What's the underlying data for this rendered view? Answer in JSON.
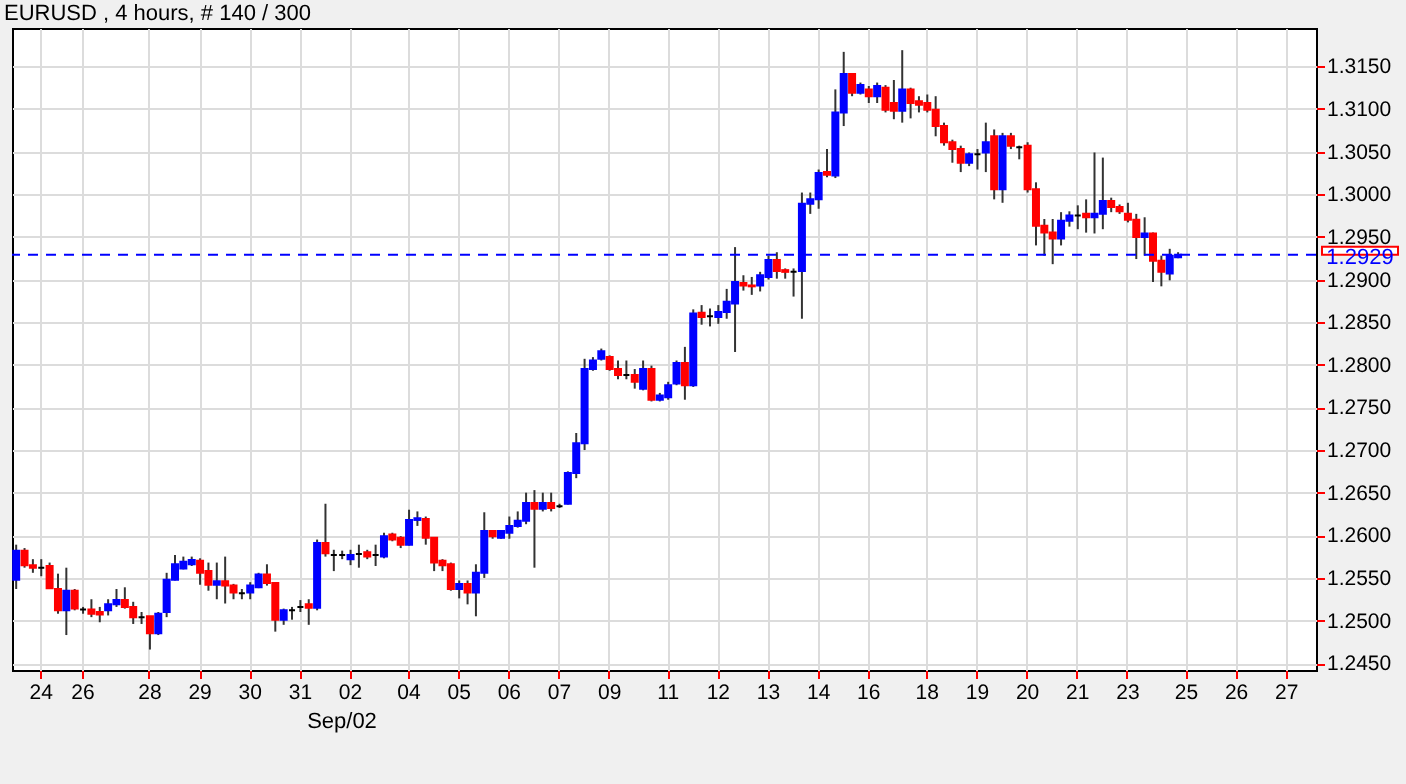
{
  "chart_data": {
    "type": "candlestick",
    "title": "EURUSD , 4 hours, # 140 / 300",
    "annotations": [
      "Sep/02"
    ],
    "categories": [
      null,
      null,
      null,
      "24",
      null,
      null,
      null,
      null,
      "26",
      null,
      null,
      null,
      null,
      null,
      null,
      null,
      "28",
      null,
      null,
      null,
      null,
      null,
      "29",
      null,
      null,
      null,
      null,
      null,
      "30",
      null,
      null,
      null,
      null,
      null,
      "31",
      null,
      null,
      null,
      null,
      null,
      "02",
      null,
      null,
      null,
      null,
      null,
      null,
      "04",
      null,
      null,
      null,
      null,
      null,
      "05",
      null,
      null,
      null,
      null,
      null,
      "06",
      null,
      null,
      null,
      null,
      null,
      "07",
      null,
      null,
      null,
      null,
      null,
      "09",
      null,
      null,
      null,
      null,
      null,
      null,
      "11",
      null,
      null,
      null,
      null,
      null,
      "12",
      null,
      null,
      null,
      null,
      null,
      "13",
      null,
      null,
      null,
      null,
      null,
      "14",
      null,
      null,
      null,
      null,
      null,
      "16",
      null,
      null,
      null,
      null,
      null,
      null,
      "18",
      null,
      null,
      null,
      null,
      null,
      "19",
      null,
      null,
      null,
      null,
      null,
      "20",
      null,
      null,
      null,
      null,
      null,
      "21",
      null,
      null,
      null,
      null,
      null,
      "23",
      null,
      null,
      null,
      null,
      null,
      null,
      "25",
      null,
      null,
      null,
      null,
      null,
      "26",
      null,
      null,
      null,
      null,
      null,
      "27",
      null,
      null,
      null
    ],
    "ohlc": [
      [
        1.2548,
        1.2589,
        1.2537,
        1.2582
      ],
      [
        1.2582,
        1.2585,
        1.2562,
        1.2565
      ],
      [
        1.2565,
        1.2572,
        1.2556,
        1.2562
      ],
      [
        1.2562,
        1.2572,
        1.2552,
        1.2562
      ],
      [
        1.2564,
        1.2568,
        1.2537,
        1.2538
      ],
      [
        1.2537,
        1.2555,
        1.2508,
        1.2512
      ],
      [
        1.2512,
        1.2562,
        1.2483,
        1.2535
      ],
      [
        1.2535,
        1.2537,
        1.2512,
        1.2514
      ],
      [
        1.2513,
        1.2516,
        1.2508,
        1.2513
      ],
      [
        1.2513,
        1.2525,
        1.2504,
        1.2508
      ],
      [
        1.251,
        1.2516,
        1.2498,
        1.2507
      ],
      [
        1.2512,
        1.2525,
        1.2506,
        1.2519
      ],
      [
        1.2519,
        1.2537,
        1.2516,
        1.2524
      ],
      [
        1.2524,
        1.2539,
        1.2514,
        1.2516
      ],
      [
        1.2516,
        1.2522,
        1.2496,
        1.2504
      ],
      [
        1.2504,
        1.251,
        1.2496,
        1.2504
      ],
      [
        1.2505,
        1.2505,
        1.2466,
        1.2485
      ],
      [
        1.2485,
        1.251,
        1.2483,
        1.2508
      ],
      [
        1.251,
        1.2556,
        1.2504,
        1.2548
      ],
      [
        1.2548,
        1.2577,
        1.2547,
        1.2566
      ],
      [
        1.2561,
        1.2575,
        1.256,
        1.2569
      ],
      [
        1.2566,
        1.2575,
        1.2564,
        1.2571
      ],
      [
        1.257,
        1.2573,
        1.2542,
        1.2556
      ],
      [
        1.2558,
        1.2568,
        1.2535,
        1.2542
      ],
      [
        1.2542,
        1.2568,
        1.2525,
        1.2546
      ],
      [
        1.2546,
        1.2575,
        1.252,
        1.2541
      ],
      [
        1.2541,
        1.2543,
        1.2525,
        1.2533
      ],
      [
        1.2532,
        1.2537,
        1.2525,
        1.2532
      ],
      [
        1.2533,
        1.2545,
        1.2525,
        1.2541
      ],
      [
        1.2539,
        1.2556,
        1.2538,
        1.2554
      ],
      [
        1.2554,
        1.2566,
        1.2541,
        1.2544
      ],
      [
        1.2544,
        1.2544,
        1.2487,
        1.2501
      ],
      [
        1.2501,
        1.2514,
        1.2495,
        1.2512
      ],
      [
        1.2512,
        1.2516,
        1.2501,
        1.2512
      ],
      [
        1.2516,
        1.2524,
        1.251,
        1.2516
      ],
      [
        1.2519,
        1.2525,
        1.2495,
        1.2515
      ],
      [
        1.2515,
        1.2595,
        1.2512,
        1.2591
      ],
      [
        1.2591,
        1.2637,
        1.2575,
        1.2579
      ],
      [
        1.2577,
        1.2583,
        1.2558,
        1.2577
      ],
      [
        1.2577,
        1.2582,
        1.2572,
        1.2577
      ],
      [
        1.2572,
        1.2583,
        1.2565,
        1.2577
      ],
      [
        1.2578,
        1.2589,
        1.2562,
        1.2578
      ],
      [
        1.258,
        1.2583,
        1.2572,
        1.2575
      ],
      [
        1.2577,
        1.2589,
        1.2564,
        1.2577
      ],
      [
        1.2575,
        1.2603,
        1.2573,
        1.2599
      ],
      [
        1.2601,
        1.2603,
        1.2593,
        1.2595
      ],
      [
        1.2597,
        1.2599,
        1.2585,
        1.2589
      ],
      [
        1.2589,
        1.263,
        1.2588,
        1.2618
      ],
      [
        1.2618,
        1.2628,
        1.2611,
        1.262
      ],
      [
        1.2619,
        1.2622,
        1.2589,
        1.2597
      ],
      [
        1.2597,
        1.2597,
        1.2558,
        1.2568
      ],
      [
        1.257,
        1.2572,
        1.2558,
        1.2565
      ],
      [
        1.2566,
        1.2568,
        1.2535,
        1.2537
      ],
      [
        1.2537,
        1.2547,
        1.2526,
        1.2543
      ],
      [
        1.2543,
        1.2547,
        1.2519,
        1.2533
      ],
      [
        1.2533,
        1.2566,
        1.2505,
        1.2556
      ],
      [
        1.2556,
        1.2627,
        1.255,
        1.2605
      ],
      [
        1.2605,
        1.2606,
        1.2596,
        1.2599
      ],
      [
        1.2597,
        1.2606,
        1.2596,
        1.2605
      ],
      [
        1.2603,
        1.2622,
        1.2596,
        1.2611
      ],
      [
        1.2611,
        1.2628,
        1.2609,
        1.2617
      ],
      [
        1.2617,
        1.265,
        1.2613,
        1.2638
      ],
      [
        1.2638,
        1.2653,
        1.2562,
        1.2631
      ],
      [
        1.2631,
        1.265,
        1.2628,
        1.2638
      ],
      [
        1.2638,
        1.265,
        1.2628,
        1.2632
      ],
      [
        1.2634,
        1.2637,
        1.2632,
        1.2634
      ],
      [
        1.2637,
        1.2675,
        1.2636,
        1.2673
      ],
      [
        1.2673,
        1.272,
        1.2667,
        1.2708
      ],
      [
        1.2708,
        1.2807,
        1.27,
        1.2795
      ],
      [
        1.2795,
        1.2809,
        1.2793,
        1.2805
      ],
      [
        1.2807,
        1.2819,
        1.2805,
        1.2816
      ],
      [
        1.2809,
        1.2811,
        1.2793,
        1.2795
      ],
      [
        1.2795,
        1.2805,
        1.2783,
        1.2788
      ],
      [
        1.2788,
        1.2805,
        1.2783,
        1.2788
      ],
      [
        1.2788,
        1.2795,
        1.2772,
        1.278
      ],
      [
        1.2772,
        1.2805,
        1.277,
        1.2795
      ],
      [
        1.2795,
        1.2799,
        1.2757,
        1.2759
      ],
      [
        1.2759,
        1.2767,
        1.2757,
        1.2764
      ],
      [
        1.2762,
        1.278,
        1.2759,
        1.2776
      ],
      [
        1.2778,
        1.2805,
        1.2776,
        1.2802
      ],
      [
        1.2802,
        1.2821,
        1.2759,
        1.2776
      ],
      [
        1.2776,
        1.2865,
        1.2774,
        1.286
      ],
      [
        1.2861,
        1.287,
        1.2847,
        1.2856
      ],
      [
        1.2857,
        1.2866,
        1.2845,
        1.2857
      ],
      [
        1.2856,
        1.287,
        1.2848,
        1.2862
      ],
      [
        1.2862,
        1.2889,
        1.2854,
        1.2874
      ],
      [
        1.2872,
        1.2938,
        1.2815,
        1.2897
      ],
      [
        1.2896,
        1.2905,
        1.2887,
        1.2893
      ],
      [
        1.2893,
        1.2903,
        1.2882,
        1.2892
      ],
      [
        1.2893,
        1.2909,
        1.2886,
        1.2905
      ],
      [
        1.2903,
        1.2928,
        1.29,
        1.2923
      ],
      [
        1.2923,
        1.2932,
        1.2901,
        1.291
      ],
      [
        1.2911,
        1.2913,
        1.2901,
        1.2909
      ],
      [
        1.2909,
        1.2913,
        1.288,
        1.2909
      ],
      [
        1.291,
        1.3002,
        1.2854,
        1.2989
      ],
      [
        1.2989,
        1.3002,
        1.2977,
        1.2994
      ],
      [
        1.2994,
        1.3029,
        1.2983,
        1.3025
      ],
      [
        1.3026,
        1.3053,
        1.302,
        1.3023
      ],
      [
        1.3022,
        1.3123,
        1.3019,
        1.3096
      ],
      [
        1.3096,
        1.3167,
        1.308,
        1.3141
      ],
      [
        1.3141,
        1.3142,
        1.3115,
        1.3119
      ],
      [
        1.3119,
        1.3131,
        1.3117,
        1.3128
      ],
      [
        1.3123,
        1.3127,
        1.3107,
        1.3115
      ],
      [
        1.3115,
        1.3131,
        1.3107,
        1.3127
      ],
      [
        1.3125,
        1.3128,
        1.3096,
        1.3099
      ],
      [
        1.3107,
        1.3134,
        1.3088,
        1.3098
      ],
      [
        1.3098,
        1.3169,
        1.3084,
        1.3123
      ],
      [
        1.3123,
        1.3125,
        1.3089,
        1.3107
      ],
      [
        1.3109,
        1.3115,
        1.3096,
        1.3105
      ],
      [
        1.3107,
        1.3117,
        1.3096,
        1.3099
      ],
      [
        1.3099,
        1.3115,
        1.3068,
        1.308
      ],
      [
        1.308,
        1.3084,
        1.3057,
        1.3061
      ],
      [
        1.3061,
        1.3064,
        1.3037,
        1.3053
      ],
      [
        1.3053,
        1.3057,
        1.3026,
        1.3037
      ],
      [
        1.3037,
        1.3049,
        1.3033,
        1.3047
      ],
      [
        1.3047,
        1.3053,
        1.3029,
        1.3047
      ],
      [
        1.3049,
        1.3084,
        1.3026,
        1.3061
      ],
      [
        1.3068,
        1.3076,
        1.2994,
        1.3006
      ],
      [
        1.3006,
        1.3072,
        1.299,
        1.3068
      ],
      [
        1.3068,
        1.3072,
        1.3053,
        1.3057
      ],
      [
        1.3055,
        1.3057,
        1.3041,
        1.3055
      ],
      [
        1.3057,
        1.3061,
        1.3002,
        1.3006
      ],
      [
        1.3006,
        1.3014,
        1.294,
        1.2963
      ],
      [
        1.2963,
        1.2971,
        1.2928,
        1.2955
      ],
      [
        1.2955,
        1.2971,
        1.2918,
        1.2948
      ],
      [
        1.2948,
        1.2979,
        1.294,
        1.2969
      ],
      [
        1.2969,
        1.298,
        1.2962,
        1.2975
      ],
      [
        1.2975,
        1.2987,
        1.2959,
        1.2975
      ],
      [
        1.2977,
        1.2994,
        1.2955,
        1.2973
      ],
      [
        1.2973,
        1.3049,
        1.2954,
        1.2977
      ],
      [
        1.2977,
        1.3043,
        1.2959,
        1.2992
      ],
      [
        1.2992,
        1.2996,
        1.2979,
        1.2985
      ],
      [
        1.2985,
        1.2988,
        1.2977,
        1.298
      ],
      [
        1.2977,
        1.299,
        1.2967,
        1.297
      ],
      [
        1.297,
        1.2977,
        1.2924,
        1.295
      ],
      [
        1.295,
        1.2973,
        1.2928,
        1.2954
      ],
      [
        1.2954,
        1.2955,
        1.2897,
        1.2922
      ],
      [
        1.2922,
        1.2928,
        1.2892,
        1.2909
      ],
      [
        1.2907,
        1.2936,
        1.2899,
        1.2928
      ],
      [
        1.2926,
        1.2932,
        1.2925,
        1.2929
      ],
      null,
      null,
      null,
      null,
      null,
      null,
      null,
      null,
      null,
      null,
      null,
      null,
      null,
      null,
      null,
      null
    ],
    "colors": [
      "#0000ff",
      "#ff0000",
      "#ff0000",
      "#000000",
      "#ff0000",
      "#ff0000",
      "#0000ff",
      "#ff0000",
      "#000000",
      "#ff0000",
      "#ff0000",
      "#0000ff",
      "#0000ff",
      "#ff0000",
      "#ff0000",
      "#000000",
      "#ff0000",
      "#0000ff",
      "#0000ff",
      "#0000ff",
      "#0000ff",
      "#0000ff",
      "#ff0000",
      "#ff0000",
      "#0000ff",
      "#ff0000",
      "#ff0000",
      "#000000",
      "#0000ff",
      "#0000ff",
      "#ff0000",
      "#ff0000",
      "#0000ff",
      "#000000",
      "#000000",
      "#ff0000",
      "#0000ff",
      "#ff0000",
      "#000000",
      "#000000",
      "#0000ff",
      "#000000",
      "#ff0000",
      "#000000",
      "#0000ff",
      "#ff0000",
      "#ff0000",
      "#0000ff",
      "#0000ff",
      "#ff0000",
      "#ff0000",
      "#ff0000",
      "#ff0000",
      "#0000ff",
      "#ff0000",
      "#0000ff",
      "#0000ff",
      "#ff0000",
      "#0000ff",
      "#0000ff",
      "#0000ff",
      "#0000ff",
      "#ff0000",
      "#0000ff",
      "#ff0000",
      "#000000",
      "#0000ff",
      "#0000ff",
      "#0000ff",
      "#0000ff",
      "#0000ff",
      "#ff0000",
      "#ff0000",
      "#000000",
      "#ff0000",
      "#0000ff",
      "#ff0000",
      "#0000ff",
      "#0000ff",
      "#0000ff",
      "#ff0000",
      "#0000ff",
      "#ff0000",
      "#000000",
      "#0000ff",
      "#0000ff",
      "#0000ff",
      "#ff0000",
      "#ff0000",
      "#0000ff",
      "#0000ff",
      "#ff0000",
      "#ff0000",
      "#000000",
      "#0000ff",
      "#0000ff",
      "#0000ff",
      "#ff0000",
      "#0000ff",
      "#0000ff",
      "#ff0000",
      "#0000ff",
      "#ff0000",
      "#0000ff",
      "#ff0000",
      "#ff0000",
      "#0000ff",
      "#ff0000",
      "#ff0000",
      "#ff0000",
      "#ff0000",
      "#ff0000",
      "#ff0000",
      "#ff0000",
      "#0000ff",
      "#000000",
      "#0000ff",
      "#ff0000",
      "#0000ff",
      "#ff0000",
      "#000000",
      "#ff0000",
      "#ff0000",
      "#ff0000",
      "#ff0000",
      "#0000ff",
      "#0000ff",
      "#000000",
      "#ff0000",
      "#0000ff",
      "#0000ff",
      "#ff0000",
      "#ff0000",
      "#ff0000",
      "#ff0000",
      "#0000ff",
      "#ff0000",
      "#ff0000",
      "#0000ff",
      "#0000ff",
      null,
      null,
      null,
      null,
      null,
      null,
      null,
      null,
      null,
      null,
      null,
      null,
      null,
      null,
      null,
      null
    ],
    "ylim": [
      1.2442,
      1.3195
    ],
    "yticks": [
      {
        "value": 1.245,
        "label": "1.2450"
      },
      {
        "value": 1.25,
        "label": "1.2500"
      },
      {
        "value": 1.255,
        "label": "1.2550"
      },
      {
        "value": 1.26,
        "label": "1.2600"
      },
      {
        "value": 1.265,
        "label": "1.2650"
      },
      {
        "value": 1.27,
        "label": "1.2700"
      },
      {
        "value": 1.275,
        "label": "1.2750"
      },
      {
        "value": 1.28,
        "label": "1.2800"
      },
      {
        "value": 1.285,
        "label": "1.2850"
      },
      {
        "value": 1.29,
        "label": "1.2900"
      },
      {
        "value": 1.295,
        "label": "1.2950"
      },
      {
        "value": 1.3,
        "label": "1.3000"
      },
      {
        "value": 1.305,
        "label": "1.3050"
      },
      {
        "value": 1.31,
        "label": "1.3100"
      },
      {
        "value": 1.315,
        "label": "1.3150"
      }
    ],
    "ref_lines": [
      {
        "axis": "y",
        "value": 1.2929,
        "label": "1.2929",
        "color": "#0000ff",
        "line_style": "dashed"
      }
    ],
    "grid": true
  }
}
